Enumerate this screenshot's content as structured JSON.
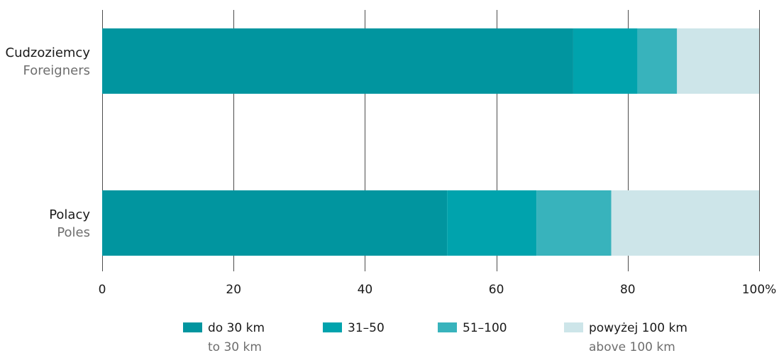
{
  "chart_data": {
    "type": "bar",
    "orientation": "horizontal",
    "stacked": true,
    "categories": [
      {
        "label_pl": "Cudzoziemcy",
        "label_en": "Foreigners"
      },
      {
        "label_pl": "Polacy",
        "label_en": "Poles"
      }
    ],
    "series": [
      {
        "name_pl": "do 30 km",
        "name_en": "to 30 km",
        "color": "#01959f",
        "values": [
          71.7,
          52.5
        ]
      },
      {
        "name_pl": "31–50",
        "name_en": "",
        "color": "#00a3ad",
        "values": [
          9.8,
          13.6
        ]
      },
      {
        "name_pl": "51–100",
        "name_en": "",
        "color": "#38b3bc",
        "values": [
          6.0,
          11.4
        ]
      },
      {
        "name_pl": "powyżej 100 km",
        "name_en": "above 100 km",
        "color": "#cde5e9",
        "values": [
          12.5,
          22.5
        ]
      }
    ],
    "xlim": [
      0,
      100
    ],
    "x_ticks": [
      {
        "value": 0,
        "label": "0"
      },
      {
        "value": 20,
        "label": "20"
      },
      {
        "value": 40,
        "label": "40"
      },
      {
        "value": 60,
        "label": "60"
      },
      {
        "value": 80,
        "label": "80"
      },
      {
        "value": 100,
        "label": "100%"
      }
    ],
    "grid": true,
    "legend_position": "bottom"
  }
}
